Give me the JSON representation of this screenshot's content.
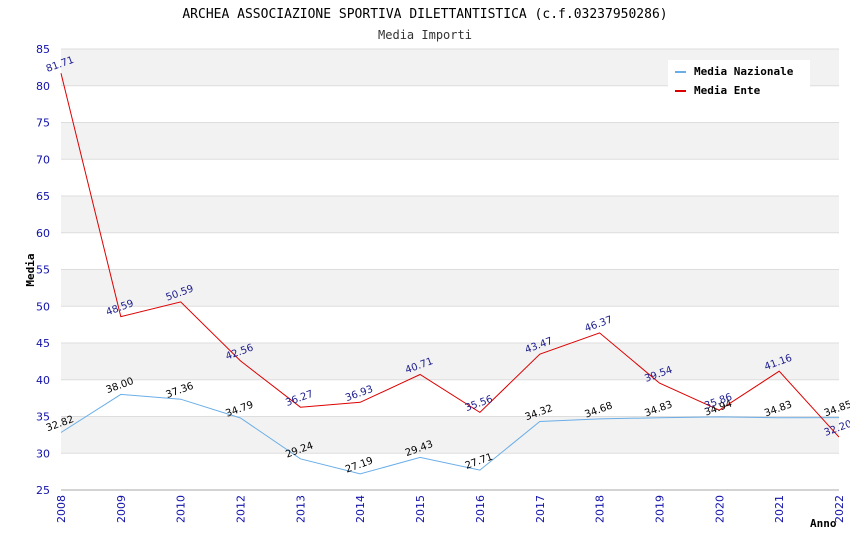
{
  "chart_data": {
    "type": "line",
    "title": "ARCHEA ASSOCIAZIONE SPORTIVA DILETTANTISTICA (c.f.03237950286)",
    "subtitle": "Media Importi",
    "xlabel": "Anno",
    "ylabel": "Media",
    "ylim": [
      25,
      85
    ],
    "yticks": [
      25,
      30,
      35,
      40,
      45,
      50,
      55,
      60,
      65,
      70,
      75,
      80,
      85
    ],
    "categories": [
      "2008",
      "2009",
      "2010",
      "2012",
      "2013",
      "2014",
      "2015",
      "2016",
      "2017",
      "2018",
      "2019",
      "2020",
      "2021",
      "2022"
    ],
    "legend_position": "top-right",
    "grid": true,
    "series": [
      {
        "name": "Media Nazionale",
        "color": "#6aaee8",
        "label_color": "#000000",
        "values": [
          32.82,
          38.0,
          37.36,
          34.79,
          29.24,
          27.19,
          29.43,
          27.71,
          34.32,
          34.68,
          34.83,
          34.94,
          34.83,
          34.85
        ],
        "labels": [
          "32.82",
          "38.00",
          "37.36",
          "34.79",
          "29.24",
          "27.19",
          "29.43",
          "27.71",
          "34.32",
          "34.68",
          "34.83",
          "34.94",
          "34.83",
          "34.85"
        ]
      },
      {
        "name": "Media Ente",
        "color": "#dd0000",
        "label_color": "#1a1a8c",
        "values": [
          81.71,
          48.59,
          50.59,
          42.56,
          36.27,
          36.93,
          40.71,
          35.56,
          43.47,
          46.37,
          39.54,
          35.86,
          41.16,
          32.2
        ],
        "labels": [
          "81.71",
          "48.59",
          "50.59",
          "42.56",
          "36.27",
          "36.93",
          "40.71",
          "35.56",
          "43.47",
          "46.37",
          "39.54",
          "35.86",
          "41.16",
          "32.20"
        ]
      }
    ]
  }
}
